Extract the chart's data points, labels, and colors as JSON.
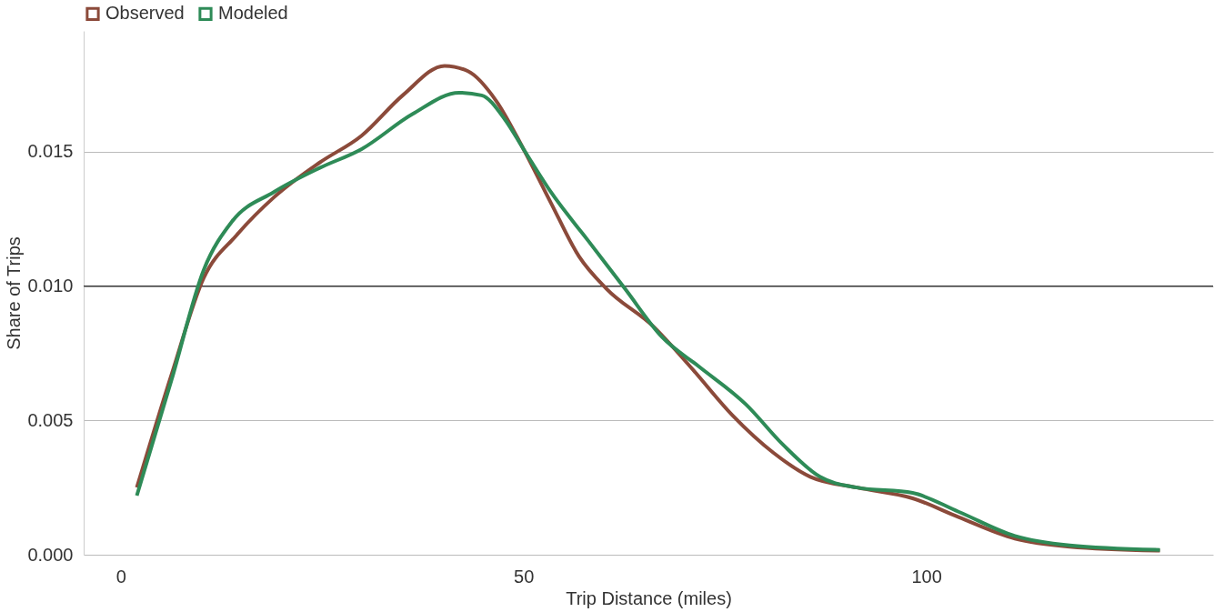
{
  "chart_data": {
    "type": "line",
    "xlabel": "Trip Distance (miles)",
    "ylabel": "Share of Trips",
    "xlim": [
      -4.6,
      135.6
    ],
    "xticks": [
      0,
      50,
      100
    ],
    "ylim": [
      0,
      0.0195
    ],
    "yticks": [
      {
        "value": 0,
        "label": "0.000"
      },
      {
        "value": 0.005,
        "label": "0.005"
      },
      {
        "value": 0.01,
        "label": "0.010"
      },
      {
        "value": 0.015,
        "label": "0.015"
      }
    ],
    "grid": "y",
    "legend": "top left",
    "line_style": "solid",
    "marker": "none",
    "ref_lines": [
      {
        "axis": "y",
        "value": 0.01,
        "color": "#333333"
      }
    ],
    "series": [
      {
        "name": "Observed",
        "color": "#8b4a3a",
        "x": [
          2.0,
          6.3,
          10.3,
          14.4,
          19,
          24.7,
          29.9,
          35,
          40.2,
          43.1,
          46.6,
          50,
          53.4,
          56.9,
          60.3,
          66.1,
          70.7,
          75.9,
          81,
          85.6,
          91.4,
          98.3,
          104,
          111,
          117.8,
          129
        ],
        "values": [
          0.0025,
          0.0067,
          0.0103,
          0.0119,
          0.0133,
          0.0146,
          0.0156,
          0.0171,
          0.0182,
          0.018,
          0.0169,
          0.0151,
          0.0131,
          0.0111,
          0.0099,
          0.0085,
          0.007,
          0.0052,
          0.0038,
          0.0029,
          0.0025,
          0.0021,
          0.0014,
          0.0006,
          0.0003,
          0.00015
        ]
      },
      {
        "name": "Modeled",
        "color": "#2e8b57",
        "x": [
          2.0,
          6.3,
          10.3,
          13.8,
          19,
          24.7,
          29.9,
          36.2,
          42,
          44.8,
          47.7,
          50,
          53.4,
          58,
          62.6,
          67.2,
          71.8,
          77.6,
          82.2,
          86.8,
          91.4,
          98.3,
          104,
          111,
          117.8,
          129
        ],
        "values": [
          0.0022,
          0.0065,
          0.0106,
          0.0124,
          0.0135,
          0.0144,
          0.0151,
          0.0164,
          0.0172,
          0.0171,
          0.0162,
          0.0151,
          0.0135,
          0.0117,
          0.0099,
          0.0081,
          0.007,
          0.0056,
          0.0041,
          0.0029,
          0.0025,
          0.0023,
          0.0016,
          0.0007,
          0.00035,
          0.00018
        ]
      }
    ]
  }
}
